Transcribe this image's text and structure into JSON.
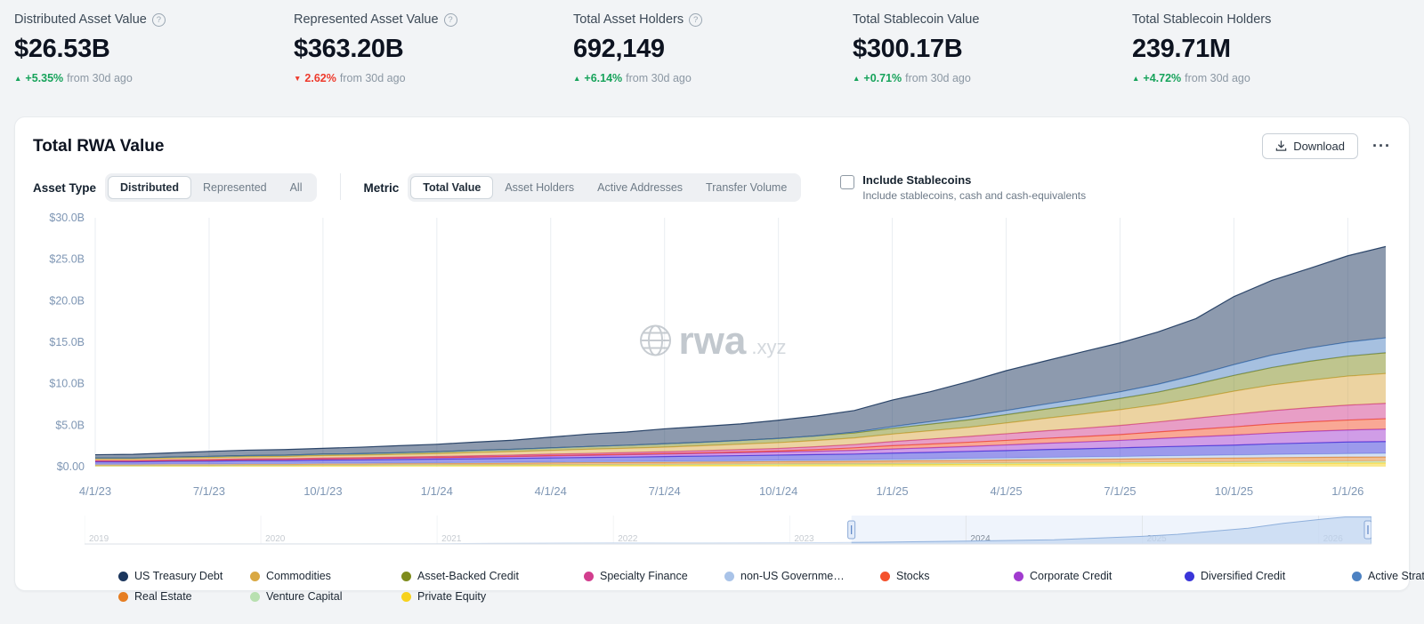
{
  "stats": [
    {
      "label": "Distributed Asset Value",
      "value": "$26.53B",
      "change": "+5.35%",
      "direction": "up",
      "suffix": "from 30d ago",
      "has_help": true
    },
    {
      "label": "Represented Asset Value",
      "value": "$363.20B",
      "change": "2.62%",
      "direction": "down",
      "suffix": "from 30d ago",
      "has_help": true
    },
    {
      "label": "Total Asset Holders",
      "value": "692,149",
      "change": "+6.14%",
      "direction": "up",
      "suffix": "from 30d ago",
      "has_help": true
    },
    {
      "label": "Total Stablecoin Value",
      "value": "$300.17B",
      "change": "+0.71%",
      "direction": "up",
      "suffix": "from 30d ago",
      "has_help": false
    },
    {
      "label": "Total Stablecoin Holders",
      "value": "239.71M",
      "change": "+4.72%",
      "direction": "up",
      "suffix": "from 30d ago",
      "has_help": false
    }
  ],
  "panel": {
    "title": "Total RWA Value",
    "download_label": "Download",
    "more_label": "···",
    "filters": {
      "asset_type_label": "Asset Type",
      "asset_type_options": [
        "Distributed",
        "Represented",
        "All"
      ],
      "asset_type_selected": "Distributed",
      "metric_label": "Metric",
      "metric_options": [
        "Total Value",
        "Asset Holders",
        "Active Addresses",
        "Transfer Volume"
      ],
      "metric_selected": "Total Value",
      "stablecoins_label": "Include Stablecoins",
      "stablecoins_sublabel": "Include stablecoins, cash and cash-equivalents",
      "stablecoins_checked": false
    },
    "watermark": {
      "brand": "rwa",
      "suffix": ".xyz"
    }
  },
  "chart_data": {
    "type": "stacked-area",
    "unit": "USD billions",
    "x": [
      "2023-04",
      "2023-05",
      "2023-06",
      "2023-07",
      "2023-08",
      "2023-09",
      "2023-10",
      "2023-11",
      "2023-12",
      "2024-01",
      "2024-02",
      "2024-03",
      "2024-04",
      "2024-05",
      "2024-06",
      "2024-07",
      "2024-08",
      "2024-09",
      "2024-10",
      "2024-11",
      "2024-12",
      "2025-01",
      "2025-02",
      "2025-03",
      "2025-04",
      "2025-05",
      "2025-06",
      "2025-07",
      "2025-08",
      "2025-09",
      "2025-10",
      "2025-11",
      "2025-12",
      "2026-01",
      "2026-02"
    ],
    "x_tick_indices": [
      0,
      3,
      6,
      9,
      12,
      15,
      18,
      21,
      24,
      27,
      30,
      33
    ],
    "x_tick_labels": [
      "4/1/23",
      "7/1/23",
      "10/1/23",
      "1/1/24",
      "4/1/24",
      "7/1/24",
      "10/1/24",
      "1/1/25",
      "4/1/25",
      "7/1/25",
      "10/1/25",
      "1/1/26"
    ],
    "ylim": [
      0,
      30
    ],
    "y_tick_values": [
      0,
      5,
      10,
      15,
      20,
      25,
      30
    ],
    "y_tick_labels": [
      "$0.00",
      "$5.0B",
      "$10.0B",
      "$15.0B",
      "$20.0B",
      "$25.0B",
      "$30.0B"
    ],
    "series": [
      {
        "name": "Private Equity",
        "color": "#f7d21e",
        "values": [
          0.1,
          0.1,
          0.11,
          0.11,
          0.12,
          0.12,
          0.13,
          0.13,
          0.14,
          0.15,
          0.15,
          0.16,
          0.17,
          0.18,
          0.18,
          0.19,
          0.2,
          0.21,
          0.22,
          0.23,
          0.24,
          0.26,
          0.27,
          0.29,
          0.3,
          0.32,
          0.33,
          0.35,
          0.37,
          0.39,
          0.4,
          0.42,
          0.43,
          0.44,
          0.45
        ]
      },
      {
        "name": "Venture Capital",
        "color": "#b8e0b0",
        "values": [
          0.02,
          0.02,
          0.03,
          0.03,
          0.04,
          0.04,
          0.05,
          0.05,
          0.06,
          0.06,
          0.07,
          0.07,
          0.08,
          0.08,
          0.09,
          0.09,
          0.1,
          0.1,
          0.11,
          0.11,
          0.12,
          0.12,
          0.13,
          0.13,
          0.14,
          0.15,
          0.15,
          0.16,
          0.17,
          0.17,
          0.18,
          0.19,
          0.19,
          0.2,
          0.2
        ]
      },
      {
        "name": "Real Estate",
        "color": "#e67e22",
        "values": [
          0.15,
          0.15,
          0.16,
          0.16,
          0.17,
          0.17,
          0.18,
          0.18,
          0.19,
          0.2,
          0.2,
          0.21,
          0.22,
          0.23,
          0.24,
          0.25,
          0.26,
          0.27,
          0.28,
          0.29,
          0.3,
          0.32,
          0.33,
          0.35,
          0.36,
          0.38,
          0.4,
          0.41,
          0.43,
          0.45,
          0.46,
          0.48,
          0.5,
          0.51,
          0.52
        ]
      },
      {
        "name": "non-US Governme…",
        "color": "#a9c3e8",
        "values": [
          0.02,
          0.02,
          0.03,
          0.03,
          0.04,
          0.04,
          0.05,
          0.05,
          0.06,
          0.06,
          0.07,
          0.08,
          0.09,
          0.1,
          0.1,
          0.11,
          0.12,
          0.13,
          0.14,
          0.15,
          0.16,
          0.18,
          0.2,
          0.22,
          0.24,
          0.26,
          0.28,
          0.3,
          0.32,
          0.34,
          0.36,
          0.38,
          0.4,
          0.42,
          0.44
        ]
      },
      {
        "name": "Diversified Credit",
        "color": "#3a35d9",
        "values": [
          0.3,
          0.3,
          0.32,
          0.34,
          0.35,
          0.36,
          0.38,
          0.4,
          0.42,
          0.44,
          0.46,
          0.48,
          0.5,
          0.52,
          0.55,
          0.58,
          0.6,
          0.62,
          0.65,
          0.68,
          0.7,
          0.75,
          0.8,
          0.85,
          0.9,
          0.95,
          1.0,
          1.05,
          1.1,
          1.15,
          1.2,
          1.28,
          1.34,
          1.4,
          1.42
        ]
      },
      {
        "name": "Corporate Credit",
        "color": "#a13bcf",
        "values": [
          0.1,
          0.1,
          0.11,
          0.12,
          0.13,
          0.14,
          0.15,
          0.16,
          0.17,
          0.18,
          0.2,
          0.22,
          0.24,
          0.26,
          0.28,
          0.3,
          0.32,
          0.35,
          0.38,
          0.4,
          0.45,
          0.5,
          0.55,
          0.6,
          0.68,
          0.75,
          0.82,
          0.9,
          1.0,
          1.1,
          1.2,
          1.3,
          1.4,
          1.45,
          1.5
        ]
      },
      {
        "name": "Stocks",
        "color": "#f4512c",
        "values": [
          0.0,
          0.0,
          0.0,
          0.0,
          0.01,
          0.01,
          0.01,
          0.02,
          0.02,
          0.02,
          0.03,
          0.03,
          0.04,
          0.05,
          0.06,
          0.07,
          0.08,
          0.1,
          0.12,
          0.2,
          0.3,
          0.4,
          0.45,
          0.5,
          0.55,
          0.6,
          0.65,
          0.7,
          0.8,
          0.9,
          1.0,
          1.1,
          1.15,
          1.2,
          1.25
        ]
      },
      {
        "name": "Specialty Finance",
        "color": "#d23e8e",
        "values": [
          0.05,
          0.05,
          0.06,
          0.07,
          0.08,
          0.08,
          0.09,
          0.1,
          0.1,
          0.12,
          0.13,
          0.15,
          0.17,
          0.18,
          0.2,
          0.22,
          0.25,
          0.28,
          0.3,
          0.35,
          0.4,
          0.5,
          0.6,
          0.7,
          0.8,
          0.9,
          1.0,
          1.1,
          1.2,
          1.35,
          1.5,
          1.6,
          1.7,
          1.8,
          1.85
        ]
      },
      {
        "name": "Commodities",
        "color": "#d9a843",
        "values": [
          0.2,
          0.2,
          0.22,
          0.25,
          0.25,
          0.27,
          0.3,
          0.3,
          0.32,
          0.35,
          0.4,
          0.42,
          0.45,
          0.5,
          0.52,
          0.55,
          0.6,
          0.65,
          0.7,
          0.75,
          0.8,
          0.9,
          1.0,
          1.1,
          1.3,
          1.5,
          1.7,
          1.9,
          2.1,
          2.4,
          2.8,
          3.1,
          3.3,
          3.5,
          3.6
        ]
      },
      {
        "name": "Asset-Backed Credit",
        "color": "#7f8c1d",
        "values": [
          0.1,
          0.1,
          0.12,
          0.13,
          0.15,
          0.15,
          0.17,
          0.18,
          0.2,
          0.22,
          0.25,
          0.27,
          0.3,
          0.33,
          0.36,
          0.4,
          0.42,
          0.45,
          0.5,
          0.55,
          0.6,
          0.7,
          0.8,
          0.9,
          1.0,
          1.1,
          1.2,
          1.35,
          1.5,
          1.7,
          1.9,
          2.1,
          2.3,
          2.4,
          2.5
        ]
      },
      {
        "name": "Active Strategies",
        "color": "#4d82c2",
        "values": [
          0,
          0,
          0,
          0,
          0,
          0,
          0,
          0,
          0,
          0,
          0,
          0,
          0,
          0,
          0,
          0,
          0,
          0,
          0,
          0,
          0.1,
          0.2,
          0.3,
          0.4,
          0.5,
          0.6,
          0.7,
          0.8,
          0.95,
          1.1,
          1.3,
          1.5,
          1.6,
          1.7,
          1.8
        ]
      },
      {
        "name": "US Treasury Debt",
        "color": "#1b365d",
        "values": [
          0.4,
          0.45,
          0.5,
          0.6,
          0.65,
          0.68,
          0.7,
          0.78,
          0.85,
          0.9,
          1.0,
          1.1,
          1.3,
          1.5,
          1.6,
          1.8,
          1.9,
          2.0,
          2.2,
          2.4,
          2.6,
          3.2,
          3.6,
          4.2,
          4.8,
          5.2,
          5.6,
          5.9,
          6.3,
          6.8,
          8.2,
          9.0,
          9.6,
          10.4,
          11.0
        ]
      }
    ],
    "legend": [
      {
        "label": "US Treasury Debt",
        "color": "#1b365d"
      },
      {
        "label": "Commodities",
        "color": "#d9a843"
      },
      {
        "label": "Asset-Backed Credit",
        "color": "#7f8c1d"
      },
      {
        "label": "Specialty Finance",
        "color": "#d23e8e"
      },
      {
        "label": "non-US Governme…",
        "color": "#a9c3e8"
      },
      {
        "label": "Stocks",
        "color": "#f4512c"
      },
      {
        "label": "Corporate Credit",
        "color": "#a13bcf"
      },
      {
        "label": "Diversified Credit",
        "color": "#3a35d9"
      },
      {
        "label": "Active Strategies",
        "color": "#4d82c2"
      },
      {
        "label": "Real Estate",
        "color": "#e67e22"
      },
      {
        "label": "Venture Capital",
        "color": "#b8e0b0"
      },
      {
        "label": "Private Equity",
        "color": "#f7d21e"
      }
    ],
    "overview": {
      "years": [
        2019,
        2020,
        2021,
        2022,
        2023,
        2024,
        2025,
        2026
      ],
      "x_range": [
        2019,
        2026.3
      ],
      "x": [
        2019,
        2019.5,
        2020,
        2020.5,
        2021,
        2021.3,
        2021.6,
        2022,
        2022.5,
        2023,
        2023.25,
        2023.5,
        2024,
        2024.5,
        2025,
        2025.2,
        2025.4,
        2025.6,
        2025.8,
        2026,
        2026.15,
        2026.3
      ],
      "values": [
        0.03,
        0.05,
        0.08,
        0.12,
        0.25,
        0.6,
        0.9,
        1.05,
        1.0,
        1.2,
        1.44,
        1.7,
        2.8,
        4.1,
        7.5,
        9.5,
        12.5,
        15.5,
        20.3,
        24.0,
        26.5,
        26.5
      ],
      "selection": [
        2023.35,
        2026.3
      ]
    }
  }
}
